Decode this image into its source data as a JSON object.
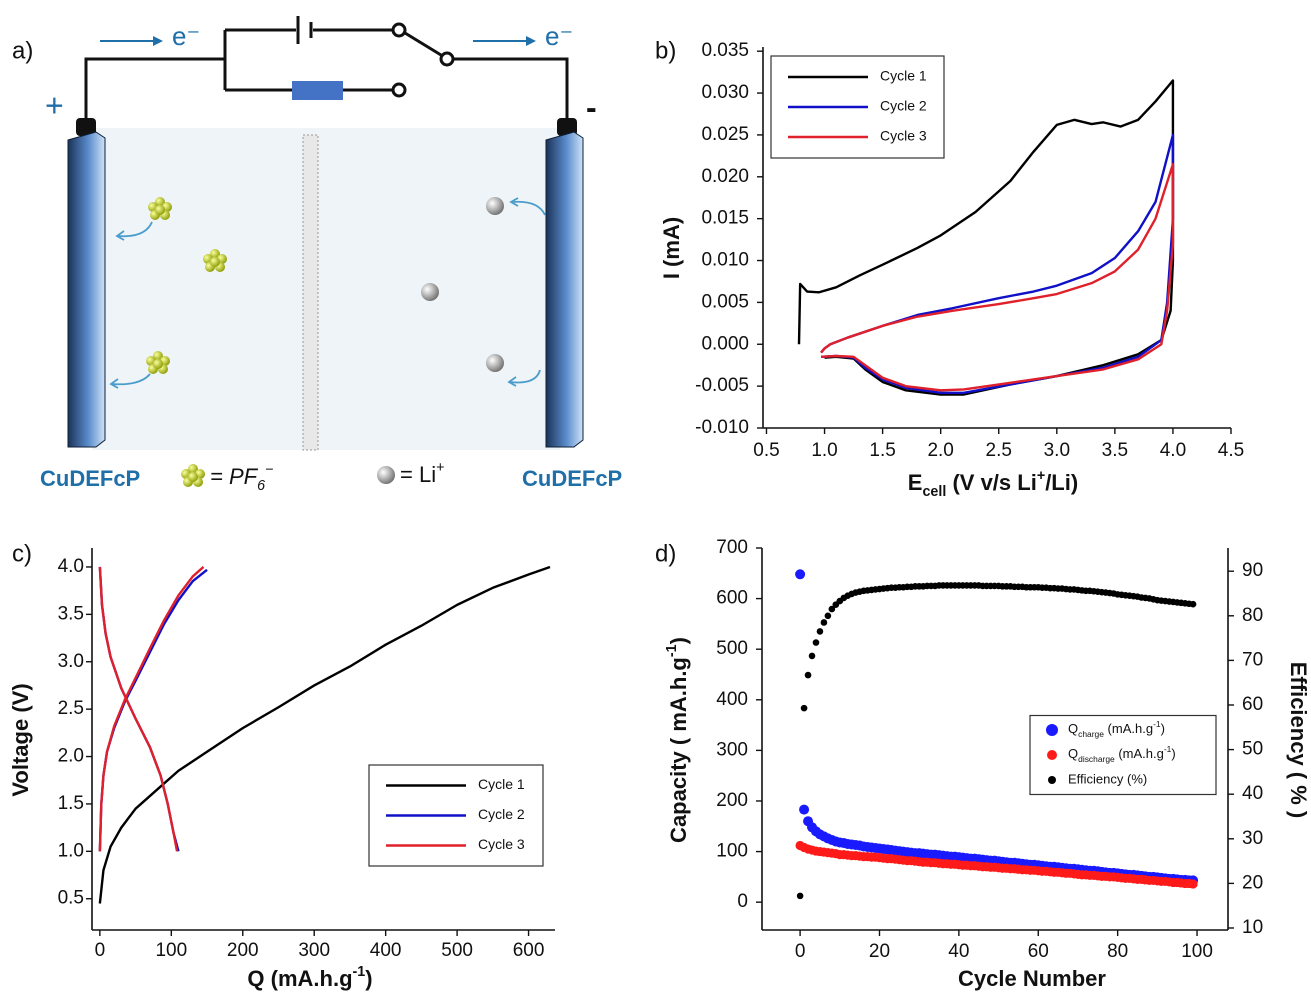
{
  "diagram": {
    "panel_label": "a)",
    "electron_left": "e⁻",
    "electron_right": "e⁻",
    "plus": "+",
    "minus": "-",
    "electrode_left": "CuDEFcP",
    "electrode_right": "CuDEFcP",
    "pf6_legend": [
      {
        "text": "= "
      },
      {
        "text": "PF"
      },
      {
        "sub": "6"
      },
      {
        "sup": "−"
      }
    ],
    "li_legend": [
      {
        "text": "= Li"
      },
      {
        "sup": "+"
      }
    ]
  },
  "chart_data": [
    {
      "type": "line",
      "panel_label": "b)",
      "ylabel": "I (mA)",
      "xlabel": [
        {
          "text": "E"
        },
        {
          "sub": "cell"
        },
        {
          "text": " (V v/s Li"
        },
        {
          "sup": "+"
        },
        {
          "text": "/Li)"
        }
      ],
      "xlim": [
        0.47,
        4.5
      ],
      "ylim": [
        -0.01,
        0.0355
      ],
      "xticks": [
        0.5,
        {
          "value": 1,
          "label": "1.0"
        },
        1.5,
        {
          "value": 2,
          "label": "2.0"
        },
        2.5,
        {
          "value": 3,
          "label": "3.0"
        },
        3.5,
        {
          "value": 4,
          "label": "4.0"
        },
        4.5
      ],
      "yticks": [
        {
          "value": -0.01,
          "label": "-0.010"
        },
        -0.005,
        {
          "value": 0,
          "label": "0.000"
        },
        0.005,
        {
          "value": 0.01,
          "label": "0.010"
        },
        0.015,
        {
          "value": 0.02,
          "label": "0.020"
        },
        0.025,
        {
          "value": 0.03,
          "label": "0.030"
        },
        0.035
      ],
      "legend": "upper left",
      "series": [
        {
          "name": "Cycle 1",
          "color": "#000000",
          "x": [
            0.78,
            0.79,
            0.85,
            0.95,
            1.1,
            1.3,
            1.5,
            1.8,
            2.0,
            2.3,
            2.6,
            2.8,
            3.0,
            3.15,
            3.3,
            3.4,
            3.55,
            3.7,
            3.85,
            4.0,
            4.0,
            3.98,
            3.9,
            3.7,
            3.4,
            3.0,
            2.6,
            2.2,
            2.0,
            1.7,
            1.5,
            1.35,
            1.25,
            1.1,
            1.0
          ],
          "values": [
            0.0,
            0.0072,
            0.0063,
            0.0062,
            0.0068,
            0.0082,
            0.0095,
            0.0115,
            0.013,
            0.0158,
            0.0195,
            0.023,
            0.0262,
            0.0268,
            0.0263,
            0.0265,
            0.026,
            0.0268,
            0.029,
            0.0315,
            0.01,
            0.004,
            0.0005,
            -0.0012,
            -0.0025,
            -0.0038,
            -0.0048,
            -0.006,
            -0.006,
            -0.0055,
            -0.0045,
            -0.003,
            -0.0017,
            -0.0015,
            -0.0016
          ]
        },
        {
          "name": "Cycle 2",
          "color": "#1010c8",
          "x": [
            0.97,
            1.0,
            1.05,
            1.2,
            1.5,
            1.8,
            2.1,
            2.5,
            2.8,
            3.0,
            3.3,
            3.5,
            3.7,
            3.85,
            4.0,
            4.0,
            3.95,
            3.9,
            3.7,
            3.4,
            3.0,
            2.6,
            2.2,
            2.0,
            1.7,
            1.5,
            1.35,
            1.25,
            1.1,
            0.97
          ],
          "values": [
            -0.001,
            -0.0005,
            0.0,
            0.0008,
            0.0022,
            0.0035,
            0.0043,
            0.0055,
            0.0063,
            0.007,
            0.0085,
            0.0103,
            0.0135,
            0.017,
            0.025,
            0.015,
            0.005,
            0.0005,
            -0.0015,
            -0.0028,
            -0.0038,
            -0.0048,
            -0.0058,
            -0.0058,
            -0.0052,
            -0.0042,
            -0.0028,
            -0.0016,
            -0.0014,
            -0.0015
          ]
        },
        {
          "name": "Cycle 3",
          "color": "#e0202a",
          "x": [
            0.97,
            1.0,
            1.05,
            1.2,
            1.5,
            1.8,
            2.1,
            2.5,
            2.8,
            3.0,
            3.3,
            3.5,
            3.7,
            3.85,
            4.0,
            4.0,
            3.95,
            3.9,
            3.7,
            3.4,
            3.0,
            2.6,
            2.2,
            2.0,
            1.7,
            1.5,
            1.35,
            1.25,
            1.1,
            0.97
          ],
          "values": [
            -0.001,
            -0.0005,
            0.0,
            0.0008,
            0.0022,
            0.0033,
            0.004,
            0.0048,
            0.0055,
            0.006,
            0.0073,
            0.0087,
            0.0113,
            0.015,
            0.0215,
            0.012,
            0.004,
            0.0,
            -0.0018,
            -0.003,
            -0.0038,
            -0.0046,
            -0.0054,
            -0.0055,
            -0.005,
            -0.004,
            -0.0025,
            -0.0015,
            -0.0014,
            -0.0015
          ]
        }
      ]
    },
    {
      "type": "line",
      "panel_label": "c)",
      "ylabel": "Voltage  (V)",
      "xlabel": [
        {
          "text": "Q (mA.h.g"
        },
        {
          "sup": "-1"
        },
        {
          "text": ")"
        }
      ],
      "xlim": [
        -11,
        637
      ],
      "ylim": [
        0.17,
        4.2
      ],
      "xticks": [
        0,
        100,
        200,
        300,
        400,
        500,
        600
      ],
      "yticks": [
        0.5,
        {
          "value": 1,
          "label": "1.0"
        },
        1.5,
        {
          "value": 2,
          "label": "2.0"
        },
        2.5,
        {
          "value": 3,
          "label": "3.0"
        },
        3.5,
        {
          "value": 4,
          "label": "4.0"
        }
      ],
      "legend": "lower right",
      "series": [
        {
          "name": "Cycle 1",
          "color": "#000000",
          "x": [
            0,
            5,
            15,
            30,
            50,
            80,
            110,
            150,
            200,
            250,
            300,
            350,
            400,
            450,
            500,
            550,
            600,
            630
          ],
          "values": [
            0.45,
            0.8,
            1.05,
            1.25,
            1.45,
            1.65,
            1.85,
            2.05,
            2.3,
            2.52,
            2.75,
            2.95,
            3.18,
            3.38,
            3.6,
            3.78,
            3.92,
            4.0
          ]
        },
        {
          "name": "Cycle 2",
          "color": "#1010c8",
          "x": [
            0,
            2,
            5,
            10,
            20,
            35,
            50,
            70,
            90,
            110,
            130,
            150,
            null,
            0,
            3,
            8,
            15,
            30,
            50,
            70,
            85,
            95,
            103,
            110
          ],
          "values": [
            1.0,
            1.5,
            1.8,
            2.05,
            2.3,
            2.58,
            2.8,
            3.1,
            3.4,
            3.65,
            3.85,
            3.97,
            null,
            4.0,
            3.6,
            3.3,
            3.05,
            2.72,
            2.4,
            2.1,
            1.8,
            1.5,
            1.2,
            1.0
          ]
        },
        {
          "name": "Cycle 3",
          "color": "#e0202a",
          "x": [
            0,
            2,
            5,
            10,
            20,
            35,
            50,
            70,
            90,
            110,
            130,
            145,
            null,
            0,
            3,
            8,
            15,
            30,
            50,
            70,
            85,
            95,
            103,
            108
          ],
          "values": [
            1.0,
            1.5,
            1.8,
            2.05,
            2.32,
            2.6,
            2.83,
            3.14,
            3.44,
            3.7,
            3.9,
            4.0,
            null,
            4.0,
            3.6,
            3.3,
            3.05,
            2.72,
            2.4,
            2.1,
            1.8,
            1.5,
            1.2,
            1.0
          ]
        }
      ]
    },
    {
      "type": "scatter",
      "panel_label": "d)",
      "ylabel": [
        {
          "text": "Capacity ( mA.h.g"
        },
        {
          "sup": "-1"
        },
        {
          "text": ")"
        }
      ],
      "y2label": "Efficiency ( % )",
      "xlabel": "Cycle Number",
      "xlim": [
        -9.6,
        107.8
      ],
      "ylim": [
        -55,
        700
      ],
      "y2lim": [
        9.55,
        95.2
      ],
      "xticks": [
        0,
        20,
        40,
        60,
        80,
        100
      ],
      "yticks": [
        0,
        100,
        200,
        300,
        400,
        500,
        600,
        700
      ],
      "y2ticks": [
        10,
        20,
        30,
        40,
        50,
        60,
        70,
        80,
        90
      ],
      "legend": "center right",
      "x": [
        0,
        1,
        2,
        3,
        4,
        5,
        6,
        7,
        8,
        9,
        10,
        11,
        12,
        13,
        14,
        15,
        16,
        17,
        18,
        19,
        20,
        21,
        22,
        23,
        24,
        25,
        26,
        27,
        28,
        29,
        30,
        31,
        32,
        33,
        34,
        35,
        36,
        37,
        38,
        39,
        40,
        41,
        42,
        43,
        44,
        45,
        46,
        47,
        48,
        49,
        50,
        51,
        52,
        53,
        54,
        55,
        56,
        57,
        58,
        59,
        60,
        61,
        62,
        63,
        64,
        65,
        66,
        67,
        68,
        69,
        70,
        71,
        72,
        73,
        74,
        75,
        76,
        77,
        78,
        79,
        80,
        81,
        82,
        83,
        84,
        85,
        86,
        87,
        88,
        89,
        90,
        91,
        92,
        93,
        94,
        95,
        96,
        97,
        98,
        99
      ],
      "series": [
        {
          "name": [
            {
              "text": "Q"
            },
            {
              "sub": "charge"
            },
            {
              "text": " (mA.h.g"
            },
            {
              "sup": "-1"
            },
            {
              "text": ")"
            }
          ],
          "color": "#1a1aff",
          "values": [
            648,
            183,
            160,
            148,
            140,
            134,
            130,
            126,
            123,
            120,
            118,
            117,
            115,
            114,
            113,
            112,
            110,
            109,
            108,
            107,
            106,
            105,
            104,
            103,
            102,
            101,
            100,
            99,
            98,
            97,
            97,
            96,
            95,
            94,
            94,
            93,
            92,
            91,
            90,
            90,
            89,
            88,
            87,
            86,
            86,
            85,
            84,
            83,
            82,
            82,
            81,
            80,
            79,
            78,
            78,
            77,
            76,
            75,
            74,
            74,
            73,
            72,
            71,
            70,
            70,
            69,
            68,
            67,
            66,
            66,
            65,
            64,
            63,
            62,
            62,
            61,
            60,
            59,
            58,
            58,
            57,
            56,
            55,
            54,
            54,
            53,
            52,
            51,
            50,
            50,
            49,
            48,
            47,
            46,
            46,
            45,
            44,
            44,
            43,
            43
          ]
        },
        {
          "name": [
            {
              "text": "Q"
            },
            {
              "sub": "discharge"
            },
            {
              "text": " (mA.h.g"
            },
            {
              "sup": "-1"
            },
            {
              "text": ")"
            }
          ],
          "color": "#ff1a1a",
          "values": [
            112,
            108,
            105,
            103,
            101,
            100,
            99,
            98,
            97,
            96,
            94,
            94,
            93,
            92,
            92,
            91,
            90,
            90,
            89,
            89,
            88,
            87,
            86,
            86,
            85,
            84,
            83,
            82,
            82,
            81,
            80,
            79,
            79,
            78,
            78,
            77,
            76,
            76,
            75,
            75,
            74,
            73,
            73,
            72,
            72,
            71,
            70,
            70,
            69,
            69,
            68,
            67,
            67,
            66,
            66,
            65,
            64,
            64,
            63,
            63,
            62,
            61,
            61,
            60,
            59,
            59,
            58,
            57,
            57,
            56,
            55,
            54,
            54,
            53,
            53,
            52,
            51,
            51,
            50,
            50,
            49,
            48,
            47,
            47,
            46,
            45,
            45,
            44,
            43,
            43,
            42,
            41,
            41,
            40,
            39,
            39,
            38,
            37,
            37,
            36
          ]
        },
        {
          "name": "Efficiency (%)",
          "color": "#000000",
          "axis": "y2",
          "values": [
            17.2,
            59.3,
            66.7,
            71,
            74,
            76.5,
            78.5,
            80,
            81.5,
            82.5,
            83.3,
            84,
            84.5,
            84.9,
            85.2,
            85.4,
            85.6,
            85.7,
            85.8,
            85.9,
            86,
            86.1,
            86.2,
            86.3,
            86.3,
            86.4,
            86.4,
            86.5,
            86.5,
            86.6,
            86.6,
            86.6,
            86.7,
            86.7,
            86.7,
            86.8,
            86.8,
            86.8,
            86.8,
            86.8,
            86.8,
            86.8,
            86.8,
            86.8,
            86.8,
            86.8,
            86.7,
            86.7,
            86.7,
            86.7,
            86.7,
            86.6,
            86.6,
            86.6,
            86.5,
            86.5,
            86.5,
            86.4,
            86.4,
            86.4,
            86.4,
            86.3,
            86.3,
            86.2,
            86.2,
            86.1,
            86.1,
            86,
            85.9,
            85.9,
            85.8,
            85.7,
            85.6,
            85.6,
            85.5,
            85.4,
            85.3,
            85.2,
            85.1,
            85,
            84.8,
            84.7,
            84.6,
            84.5,
            84.4,
            84.3,
            84.1,
            84,
            83.9,
            83.7,
            83.5,
            83.4,
            83.3,
            83.2,
            83.1,
            83,
            82.9,
            82.8,
            82.7,
            82.6
          ]
        }
      ]
    }
  ]
}
